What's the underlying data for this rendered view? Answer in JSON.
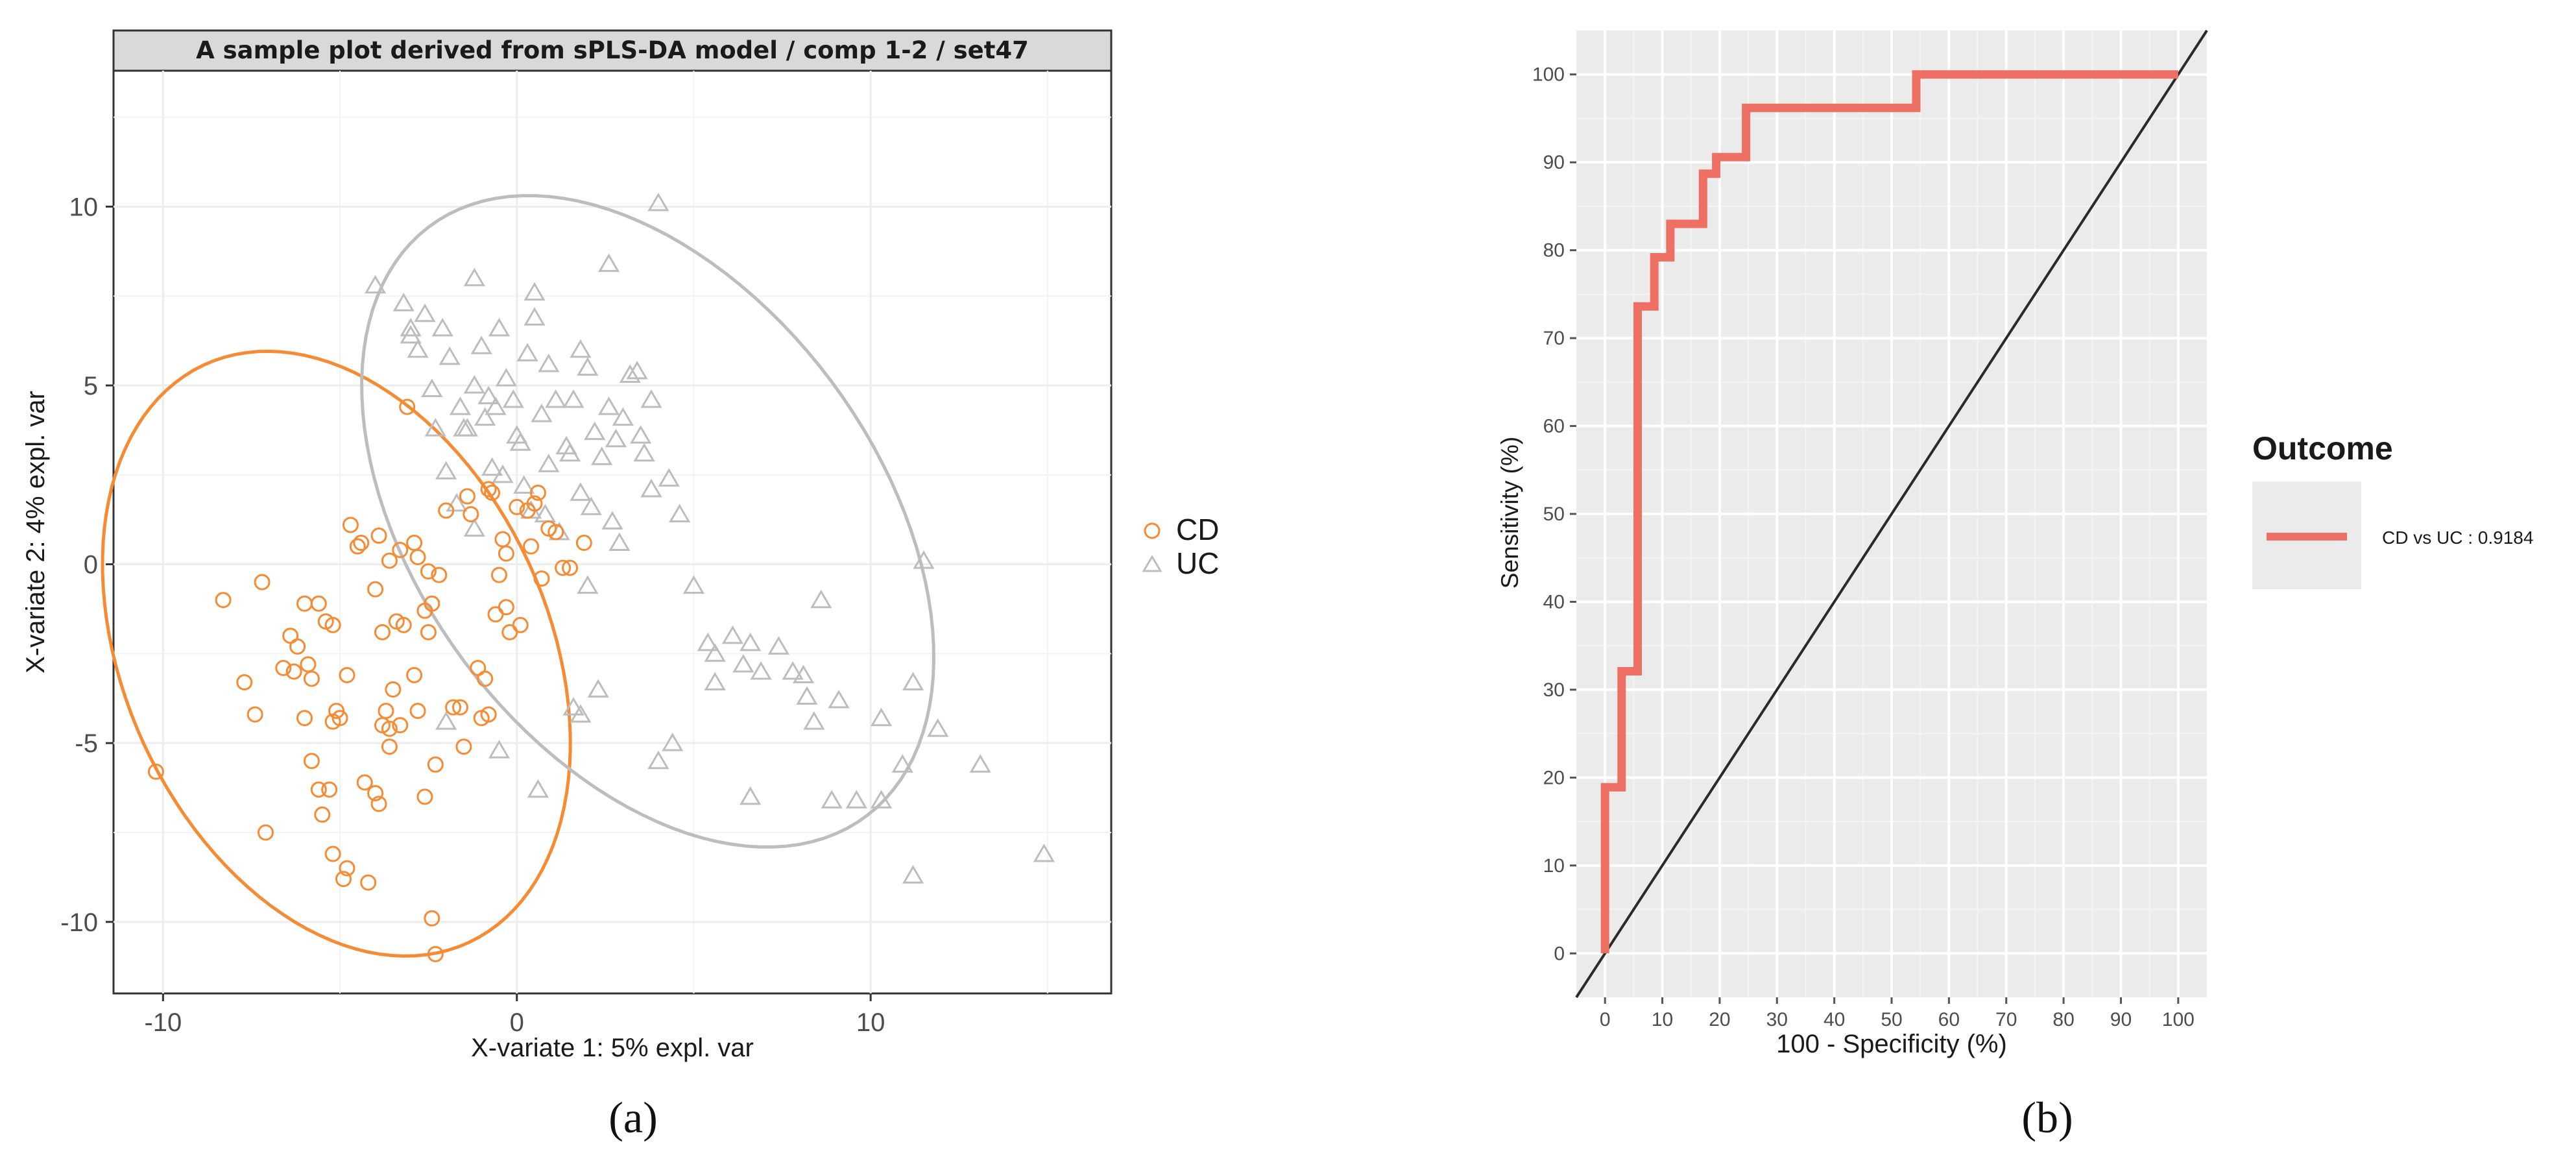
{
  "panel_labels": {
    "a": "(a)",
    "b": "(b)"
  },
  "colors": {
    "cd": "#F68B33",
    "uc": "#BDBDBD",
    "roc": "#EE6F63",
    "diag": "#2a2a2a",
    "panel_bg": "#EBEBEB",
    "grid": "#EDEDED"
  },
  "chart_data": [
    {
      "type": "scatter",
      "title": "A sample plot derived from sPLS-DA model / comp 1-2 / set47",
      "xlabel": "X-variate 1: 5% expl. var",
      "ylabel": "X-variate 2: 4% expl. var",
      "xlim": [
        -11.4,
        16.8
      ],
      "ylim": [
        -12.0,
        13.8
      ],
      "xticks": [
        -10,
        0,
        10
      ],
      "xtick_labels": [
        "-10",
        "0",
        "10"
      ],
      "yticks": [
        -10,
        -5,
        0,
        5,
        10
      ],
      "ytick_labels": [
        "-10",
        "-5",
        "0",
        "5",
        "10"
      ],
      "grid": true,
      "legend": {
        "position": "right",
        "entries": [
          {
            "label": "CD",
            "marker": "circle"
          },
          {
            "label": "UC",
            "marker": "triangle"
          }
        ]
      },
      "ellipses": [
        {
          "group": "CD",
          "center": [
            -5.1,
            -2.5
          ],
          "semi_axes": [
            6.0,
            8.9
          ],
          "angle_deg": 25
        },
        {
          "group": "UC",
          "center": [
            3.7,
            1.2
          ],
          "semi_axes": [
            6.5,
            10.3
          ],
          "angle_deg": 37
        }
      ],
      "series": [
        {
          "name": "CD",
          "marker": "circle",
          "x": [
            -10.2,
            -8.3,
            -7.4,
            -7.7,
            -7.2,
            -7.1,
            -6.6,
            -6.3,
            -6.2,
            -6.0,
            -5.9,
            -5.8,
            -5.6,
            -5.4,
            -5.3,
            -5.2,
            -5.2,
            -5.1,
            -5.0,
            -4.9,
            -4.8,
            -4.3,
            -4.2,
            -4.0,
            -3.9,
            -3.8,
            -3.7,
            -3.6,
            -3.6,
            -3.5,
            -3.4,
            -3.3,
            -3.2,
            -2.9,
            -2.8,
            -2.6,
            -2.5,
            -2.4,
            -2.3,
            -2.3,
            -2.2,
            -1.8,
            -1.6,
            -1.5,
            -1.3,
            -1.1,
            -1.0,
            -0.9,
            -0.8,
            -0.8,
            -0.6,
            -0.5,
            -0.4,
            -0.3,
            -0.2,
            0.0,
            0.1,
            0.3,
            0.4,
            0.5,
            0.6,
            0.7,
            0.9,
            1.1,
            1.3,
            1.5,
            1.9,
            -5.5,
            -5.6,
            -5.8,
            -6.0,
            -6.4,
            -4.5,
            -3.9,
            -4.7,
            -3.1,
            -5.2,
            -2.5,
            -2.8,
            -3.8,
            -4.8,
            -3.3,
            -2.4,
            -1.4,
            -0.3,
            -2.0,
            -3.6,
            -4.4,
            -4.0,
            -2.6,
            -2.9,
            -0.7
          ],
          "y": [
            -5.8,
            -1.0,
            -4.2,
            -3.3,
            -0.5,
            -7.5,
            -2.9,
            -3.0,
            -2.3,
            -1.1,
            -2.8,
            -3.2,
            -1.1,
            -1.6,
            -6.3,
            -4.4,
            -8.1,
            -4.1,
            -4.3,
            -8.8,
            -8.5,
            -6.1,
            -8.9,
            -6.4,
            -6.7,
            -4.5,
            -4.1,
            -4.6,
            -5.1,
            -3.5,
            -1.6,
            -4.5,
            -1.7,
            -3.1,
            -4.1,
            -6.5,
            -1.9,
            -9.9,
            -10.9,
            -5.6,
            -0.3,
            -4.0,
            -4.0,
            -5.1,
            1.4,
            -2.9,
            -4.3,
            -3.2,
            -4.2,
            2.1,
            -1.4,
            -0.3,
            0.7,
            -1.2,
            -1.9,
            1.6,
            -1.7,
            1.5,
            0.5,
            1.7,
            2.0,
            -0.4,
            1.0,
            0.9,
            -0.1,
            -0.1,
            0.6,
            -7.0,
            -6.3,
            -5.5,
            -4.3,
            -2.0,
            0.5,
            0.8,
            1.1,
            4.4,
            -1.7,
            -0.2,
            0.2,
            -1.9,
            -3.1,
            0.4,
            -1.1,
            1.9,
            0.3,
            1.5,
            0.1,
            0.6,
            -0.7,
            -1.3,
            0.6,
            2.0
          ]
        },
        {
          "name": "UC",
          "marker": "triangle",
          "x": [
            -4.0,
            -3.2,
            -3.0,
            -2.8,
            -2.6,
            -2.4,
            -2.1,
            -1.9,
            -1.6,
            -1.4,
            -1.2,
            -1.0,
            -0.8,
            -0.6,
            -0.5,
            -0.3,
            -0.1,
            0.1,
            0.3,
            0.5,
            0.7,
            0.9,
            1.1,
            1.4,
            1.6,
            1.8,
            2.0,
            2.2,
            2.4,
            2.6,
            2.8,
            3.0,
            3.2,
            3.4,
            3.6,
            3.8,
            4.0,
            4.3,
            4.6,
            -2.0,
            -1.5,
            -0.7,
            0.2,
            0.8,
            1.5,
            2.1,
            2.9,
            3.8,
            -1.2,
            -0.4,
            0.4,
            1.2,
            2.0,
            -2.3,
            -1.7,
            -0.9,
            0.0,
            0.9,
            1.8,
            2.7,
            3.5,
            4.4,
            5.0,
            5.4,
            5.6,
            6.1,
            6.4,
            6.6,
            6.9,
            7.4,
            7.8,
            8.2,
            8.4,
            8.6,
            9.1,
            9.6,
            10.3,
            10.9,
            11.2,
            11.5,
            11.9,
            13.1,
            14.9,
            1.6,
            1.8,
            2.3,
            -0.5,
            4.0,
            5.6,
            0.6,
            -2.0,
            6.6,
            8.1,
            8.9,
            10.3,
            11.2,
            -3.0,
            -1.2,
            0.5,
            2.6
          ],
          "y": [
            7.8,
            7.3,
            6.6,
            6.0,
            7.0,
            4.9,
            6.6,
            5.8,
            4.4,
            3.8,
            5.0,
            6.1,
            4.7,
            4.4,
            6.6,
            5.2,
            4.6,
            3.4,
            5.9,
            6.9,
            4.2,
            5.6,
            4.6,
            3.3,
            4.6,
            6.0,
            5.5,
            3.7,
            3.0,
            4.4,
            3.5,
            4.1,
            5.3,
            5.4,
            3.1,
            4.6,
            10.1,
            2.4,
            1.4,
            2.6,
            3.8,
            2.7,
            2.2,
            1.4,
            3.1,
            1.6,
            0.6,
            2.1,
            1.0,
            2.5,
            1.5,
            0.9,
            -0.6,
            3.8,
            1.7,
            4.1,
            3.6,
            2.8,
            2.0,
            1.2,
            3.6,
            -5.0,
            -0.6,
            -2.2,
            -3.3,
            -2.0,
            -2.8,
            -2.2,
            -3.0,
            -2.3,
            -3.0,
            -3.7,
            -4.4,
            -1.0,
            -3.8,
            -6.6,
            -4.3,
            -5.6,
            -8.7,
            0.1,
            -4.6,
            -5.6,
            -8.1,
            -4.0,
            -4.2,
            -3.5,
            -5.2,
            -5.5,
            -2.5,
            -6.3,
            -4.4,
            -6.5,
            -3.1,
            -6.6,
            -6.6,
            -3.3,
            6.4,
            8.0,
            7.6,
            8.4
          ]
        }
      ]
    },
    {
      "type": "line",
      "title": "",
      "xlabel": "100 - Specificity (%)",
      "ylabel": "Sensitivity (%)",
      "xlim": [
        -5,
        105
      ],
      "ylim": [
        -5,
        105
      ],
      "xticks": [
        0,
        10,
        20,
        30,
        40,
        50,
        60,
        70,
        80,
        90,
        100
      ],
      "xtick_labels": [
        "0",
        "10",
        "20",
        "30",
        "40",
        "50",
        "60",
        "70",
        "80",
        "90",
        "100"
      ],
      "yticks": [
        0,
        10,
        20,
        30,
        40,
        50,
        60,
        70,
        80,
        90,
        100
      ],
      "ytick_labels": [
        "0",
        "10",
        "20",
        "30",
        "40",
        "50",
        "60",
        "70",
        "80",
        "90",
        "100"
      ],
      "grid": true,
      "legend": {
        "position": "right",
        "title": "Outcome",
        "entries": [
          {
            "label": "CD vs UC : 0.9184"
          }
        ]
      },
      "reference_line": {
        "x": [
          -5,
          105
        ],
        "y": [
          -5,
          105
        ]
      },
      "series": [
        {
          "name": "CD vs UC : 0.9184",
          "x": [
            0,
            0,
            0,
            2.9,
            2.9,
            5.7,
            5.7,
            8.6,
            8.6,
            11.4,
            11.4,
            17.1,
            17.1,
            19.4,
            19.4,
            24.6,
            24.6,
            54.3,
            54.3,
            100
          ],
          "y": [
            0,
            0,
            18.9,
            18.9,
            32.1,
            32.1,
            73.6,
            73.6,
            79.2,
            79.2,
            83.0,
            83.0,
            88.7,
            88.7,
            90.6,
            90.6,
            96.2,
            96.2,
            100,
            100
          ]
        }
      ]
    }
  ]
}
